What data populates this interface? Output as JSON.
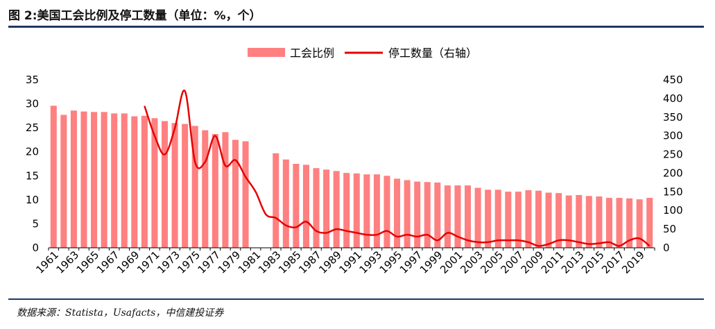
{
  "page": {
    "title": "图 2:美国工会比例及停工数量（单位：%，个）",
    "source": "数据来源：Statista，Usafacts，中信建投证券"
  },
  "colors": {
    "bar": "#ff8080",
    "line": "#e60000",
    "rule": "#1f3864"
  },
  "chart_data": {
    "type": "bar",
    "title": "美国工会比例及停工数量（单位：%，个）",
    "legend_position": "top-center",
    "legend": [
      "工会比例",
      "停工数量（右轴）"
    ],
    "x": [
      1961,
      1962,
      1963,
      1964,
      1965,
      1966,
      1967,
      1968,
      1969,
      1970,
      1971,
      1972,
      1973,
      1974,
      1975,
      1976,
      1977,
      1978,
      1979,
      1980,
      1981,
      1982,
      1983,
      1984,
      1985,
      1986,
      1987,
      1988,
      1989,
      1990,
      1991,
      1992,
      1993,
      1994,
      1995,
      1996,
      1997,
      1998,
      1999,
      2000,
      2001,
      2002,
      2003,
      2004,
      2005,
      2006,
      2007,
      2008,
      2009,
      2010,
      2011,
      2012,
      2013,
      2014,
      2015,
      2016,
      2017,
      2018,
      2019,
      2020
    ],
    "x_tick_labels": [
      "1961",
      "1963",
      "1965",
      "1967",
      "1969",
      "1971",
      "1973",
      "1975",
      "1977",
      "1979",
      "1981",
      "1983",
      "1985",
      "1987",
      "1989",
      "1991",
      "1993",
      "1995",
      "1997",
      "1999",
      "2001",
      "2003",
      "2005",
      "2007",
      "2009",
      "2011",
      "2013",
      "2015",
      "2017",
      "2019"
    ],
    "y_left": {
      "range": [
        0,
        35
      ],
      "ticks": [
        "0",
        "5",
        "10",
        "15",
        "20",
        "25",
        "30",
        "35"
      ]
    },
    "y_right": {
      "range": [
        0,
        450
      ],
      "ticks": [
        "0",
        "50",
        "100",
        "150",
        "200",
        "250",
        "300",
        "350",
        "400",
        "450"
      ]
    },
    "series": [
      {
        "name": "工会比例",
        "type": "bar",
        "axis": "left",
        "values": [
          29.6,
          27.7,
          28.6,
          28.4,
          28.3,
          28.3,
          28.0,
          28.0,
          27.4,
          27.5,
          27.0,
          26.4,
          26.0,
          25.8,
          25.4,
          24.5,
          23.7,
          24.1,
          22.5,
          22.2,
          null,
          null,
          19.7,
          18.4,
          17.5,
          17.3,
          16.6,
          16.3,
          16.0,
          15.6,
          15.5,
          15.3,
          15.3,
          15.0,
          14.4,
          14.1,
          13.8,
          13.7,
          13.6,
          13.0,
          13.0,
          13.0,
          12.5,
          12.1,
          12.1,
          11.7,
          11.7,
          12.0,
          11.9,
          11.5,
          11.4,
          10.9,
          11.0,
          10.8,
          10.7,
          10.4,
          10.4,
          10.3,
          10.1,
          10.4
        ]
      },
      {
        "name": "停工数量（右轴）",
        "type": "line",
        "axis": "right",
        "values": [
          null,
          null,
          null,
          null,
          null,
          null,
          null,
          null,
          null,
          380,
          300,
          250,
          320,
          420,
          230,
          230,
          300,
          220,
          235,
          190,
          150,
          90,
          80,
          60,
          55,
          70,
          45,
          40,
          50,
          45,
          40,
          35,
          35,
          45,
          30,
          35,
          30,
          35,
          20,
          40,
          30,
          20,
          15,
          15,
          20,
          20,
          20,
          15,
          5,
          10,
          20,
          20,
          15,
          10,
          12,
          15,
          5,
          20,
          25,
          5
        ]
      }
    ]
  }
}
